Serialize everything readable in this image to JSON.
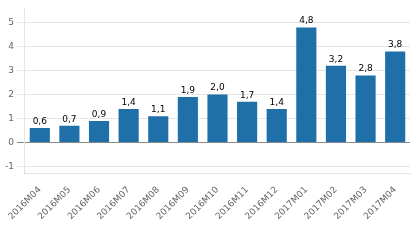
{
  "chart_data": {
    "type": "bar",
    "categories": [
      "2016M04",
      "2016M05",
      "2016M06",
      "2016M07",
      "2016M08",
      "2016M09",
      "2016M10",
      "2016M11",
      "2016M12",
      "2017M01",
      "2017M02",
      "2017M03",
      "2017M04"
    ],
    "values": [
      0.6,
      0.7,
      0.9,
      1.4,
      1.1,
      1.9,
      2.0,
      1.7,
      1.4,
      4.8,
      3.2,
      2.8,
      3.8
    ],
    "value_labels": [
      "0,6",
      "0,7",
      "0,9",
      "1,4",
      "1,1",
      "1,9",
      "2,0",
      "1,7",
      "1,4",
      "4,8",
      "3,2",
      "2,8",
      "3,8"
    ],
    "data_labels": true,
    "color": "#1F6FA8",
    "ylim": [
      -1.3,
      5.6
    ],
    "yticks": [
      -1,
      0,
      1,
      2,
      3,
      4,
      5
    ],
    "grid": true
  }
}
